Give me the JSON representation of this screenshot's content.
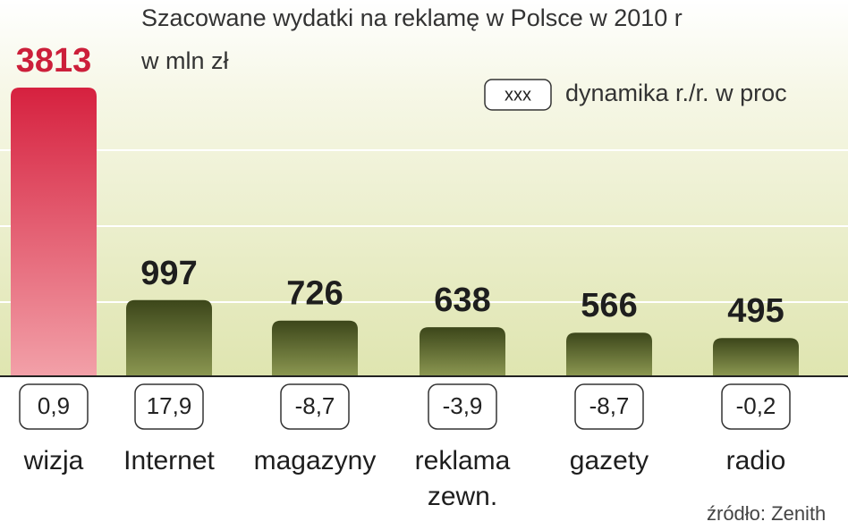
{
  "chart_data": {
    "type": "bar",
    "title": "Szacowane wydatki na reklamę w Polsce  w 2010 r",
    "subtitle": "w mln zł",
    "legend": {
      "box": "xxx",
      "text": "dynamika r./r. w proc"
    },
    "categories": [
      "wizja",
      "Internet",
      "magazyny",
      "reklama zewn.",
      "gazety",
      "radio"
    ],
    "values": [
      3813,
      997,
      726,
      638,
      566,
      495
    ],
    "dynamics_labels": [
      "0,9",
      "17,9",
      "-8,7",
      "-3,9",
      "-8,7",
      "-0,2"
    ],
    "colors": [
      "#cc1f3a",
      "#4d5a22",
      "#4d5a22",
      "#4d5a22",
      "#4d5a22",
      "#4d5a22"
    ],
    "source": "źródło: Zenith"
  }
}
